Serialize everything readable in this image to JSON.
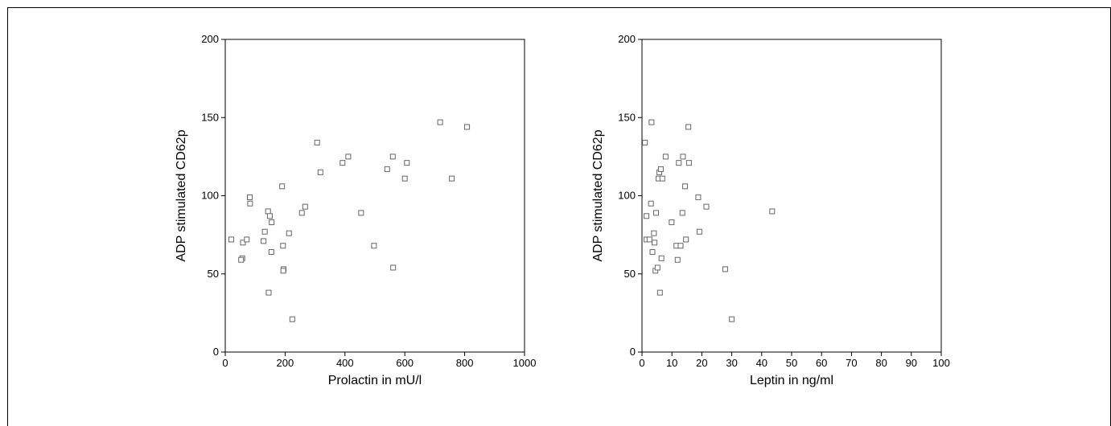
{
  "chart_data": [
    {
      "type": "scatter",
      "xlabel": "Prolactin in mU/l",
      "ylabel": "ADP stimulated CD62p",
      "xlim": [
        0,
        1000
      ],
      "ylim": [
        0,
        200
      ],
      "x_ticks": [
        0,
        200,
        400,
        600,
        800,
        1000
      ],
      "y_ticks": [
        0,
        50,
        100,
        150,
        200
      ],
      "marker": "open-square",
      "grid": false,
      "points": [
        {
          "x": 20,
          "y": 72
        },
        {
          "x": 57,
          "y": 60
        },
        {
          "x": 53,
          "y": 59
        },
        {
          "x": 59,
          "y": 70
        },
        {
          "x": 72,
          "y": 72
        },
        {
          "x": 82,
          "y": 99
        },
        {
          "x": 83,
          "y": 95
        },
        {
          "x": 128,
          "y": 71
        },
        {
          "x": 132,
          "y": 77
        },
        {
          "x": 143,
          "y": 90
        },
        {
          "x": 149,
          "y": 87
        },
        {
          "x": 155,
          "y": 83
        },
        {
          "x": 154,
          "y": 64
        },
        {
          "x": 145,
          "y": 38
        },
        {
          "x": 190,
          "y": 106
        },
        {
          "x": 193,
          "y": 68
        },
        {
          "x": 195,
          "y": 53
        },
        {
          "x": 194,
          "y": 52
        },
        {
          "x": 213,
          "y": 76
        },
        {
          "x": 224,
          "y": 21
        },
        {
          "x": 256,
          "y": 89
        },
        {
          "x": 267,
          "y": 93
        },
        {
          "x": 307,
          "y": 134
        },
        {
          "x": 318,
          "y": 115
        },
        {
          "x": 392,
          "y": 121
        },
        {
          "x": 411,
          "y": 125
        },
        {
          "x": 454,
          "y": 89
        },
        {
          "x": 497,
          "y": 68
        },
        {
          "x": 541,
          "y": 117
        },
        {
          "x": 560,
          "y": 125
        },
        {
          "x": 561,
          "y": 54
        },
        {
          "x": 600,
          "y": 111
        },
        {
          "x": 607,
          "y": 121
        },
        {
          "x": 718,
          "y": 147
        },
        {
          "x": 757,
          "y": 111
        },
        {
          "x": 808,
          "y": 144
        }
      ]
    },
    {
      "type": "scatter",
      "xlabel": "Leptin in ng/ml",
      "ylabel": "ADP stimulated CD62p",
      "xlim": [
        0,
        100
      ],
      "ylim": [
        0,
        200
      ],
      "x_ticks": [
        0,
        10,
        20,
        30,
        40,
        50,
        60,
        70,
        80,
        90,
        100
      ],
      "y_ticks": [
        0,
        50,
        100,
        150,
        200
      ],
      "marker": "open-square",
      "grid": false,
      "points": [
        {
          "x": 1.0,
          "y": 134
        },
        {
          "x": 1.5,
          "y": 87
        },
        {
          "x": 1.5,
          "y": 72
        },
        {
          "x": 2.5,
          "y": 72
        },
        {
          "x": 3.0,
          "y": 95
        },
        {
          "x": 3.2,
          "y": 147
        },
        {
          "x": 3.5,
          "y": 64
        },
        {
          "x": 4.0,
          "y": 76
        },
        {
          "x": 4.2,
          "y": 70
        },
        {
          "x": 4.5,
          "y": 52
        },
        {
          "x": 4.7,
          "y": 89
        },
        {
          "x": 5.2,
          "y": 54
        },
        {
          "x": 5.5,
          "y": 111
        },
        {
          "x": 5.8,
          "y": 115
        },
        {
          "x": 6.0,
          "y": 38
        },
        {
          "x": 6.3,
          "y": 117
        },
        {
          "x": 6.5,
          "y": 60
        },
        {
          "x": 6.8,
          "y": 111
        },
        {
          "x": 7.9,
          "y": 125
        },
        {
          "x": 9.9,
          "y": 83
        },
        {
          "x": 11.5,
          "y": 68
        },
        {
          "x": 11.9,
          "y": 59
        },
        {
          "x": 12.3,
          "y": 121
        },
        {
          "x": 12.9,
          "y": 68
        },
        {
          "x": 13.5,
          "y": 89
        },
        {
          "x": 13.7,
          "y": 125
        },
        {
          "x": 14.4,
          "y": 106
        },
        {
          "x": 14.7,
          "y": 72
        },
        {
          "x": 15.5,
          "y": 144
        },
        {
          "x": 15.7,
          "y": 121
        },
        {
          "x": 18.8,
          "y": 99
        },
        {
          "x": 19.2,
          "y": 77
        },
        {
          "x": 21.5,
          "y": 93
        },
        {
          "x": 27.8,
          "y": 53
        },
        {
          "x": 30.0,
          "y": 21
        },
        {
          "x": 43.5,
          "y": 90
        }
      ]
    }
  ]
}
